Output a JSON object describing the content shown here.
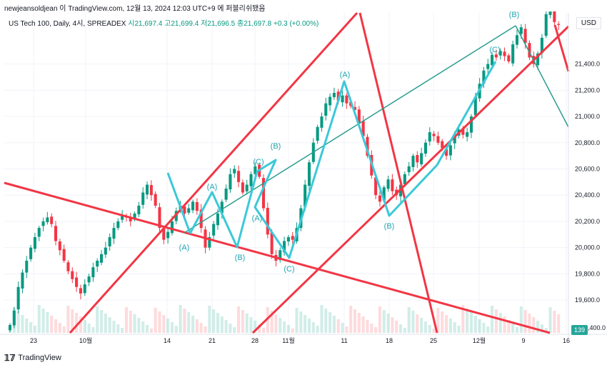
{
  "publisher": "newjeansoldjean 이 TradingView.com, 12월 13, 2024 12:03 UTC+9 에 퍼블리쉬됐음",
  "legend": {
    "symbol": "US Tech 100, Daily, 4시, SPREADEX",
    "open_label": "시",
    "open": "21,697.4",
    "high_label": "고",
    "high": "21,699.4",
    "low_label": "저",
    "low": "21,696.5",
    "close_label": "종",
    "close": "21,697.8",
    "change": "+0.3 (+0.00%)"
  },
  "currency": "USD",
  "badge": "139",
  "brand": "TradingView",
  "colors": {
    "up": "#089981",
    "down": "#f23645",
    "trendline": "#f23645",
    "wave": "#3cc8d8",
    "channel": "#2a9d8f",
    "wave_label": "#22a6b3"
  },
  "chart_data": {
    "type": "candlestick",
    "y_ticks": [
      "19,600.0",
      "19,800.0",
      "20,000.0",
      "20,200.0",
      "20,400.0",
      "20,600.0",
      "20,800.0",
      "21,000.0",
      "21,200.0",
      "21,400.0"
    ],
    "partial_y_tick": "19,400.0",
    "x_ticks": [
      "23",
      "10월",
      "14",
      "21",
      "28",
      "11월",
      "11",
      "18",
      "25",
      "12월",
      "9",
      "16"
    ],
    "ylim": [
      19350,
      21790
    ],
    "wave_labels": [
      "(A)",
      "(B)",
      "(C)",
      "(A)",
      "(B)",
      "(C)",
      "(A)",
      "(B)",
      "(C)",
      "(B)"
    ],
    "series_close": [
      19410,
      19520,
      19700,
      19810,
      19900,
      20000,
      20080,
      20150,
      20200,
      20230,
      20180,
      20050,
      19980,
      19900,
      19820,
      19760,
      19700,
      19650,
      19720,
      19780,
      19850,
      19900,
      19950,
      20000,
      20080,
      20150,
      20200,
      20250,
      20230,
      20200,
      20260,
      20320,
      20420,
      20480,
      20400,
      20320,
      20150,
      20060,
      20120,
      20200,
      20280,
      20320,
      20260,
      20300,
      20350,
      20280,
      20150,
      20000,
      20080,
      20180,
      20260,
      20350,
      20450,
      20560,
      20600,
      20500,
      20420,
      20480,
      20560,
      20620,
      20540,
      20300,
      20100,
      19950,
      19900,
      19980,
      20050,
      20080,
      20060,
      20150,
      20300,
      20480,
      20650,
      20800,
      20920,
      21000,
      21100,
      21150,
      21180,
      21120,
      21160,
      21100,
      21080,
      21050,
      20950,
      20850,
      20700,
      20550,
      20400,
      20350,
      20460,
      20520,
      20430,
      20400,
      20480,
      20560,
      20620,
      20700,
      20650,
      20720,
      20800,
      20880,
      20850,
      20800,
      20760,
      20700,
      20780,
      20860,
      20900,
      20860,
      20880,
      21000,
      21150,
      21250,
      21350,
      21400,
      21470,
      21450,
      21500,
      21460,
      21420,
      21550,
      21620,
      21680,
      21560,
      21450,
      21400,
      21480,
      21600,
      21780,
      21800,
      21720,
      21697.8
    ]
  }
}
